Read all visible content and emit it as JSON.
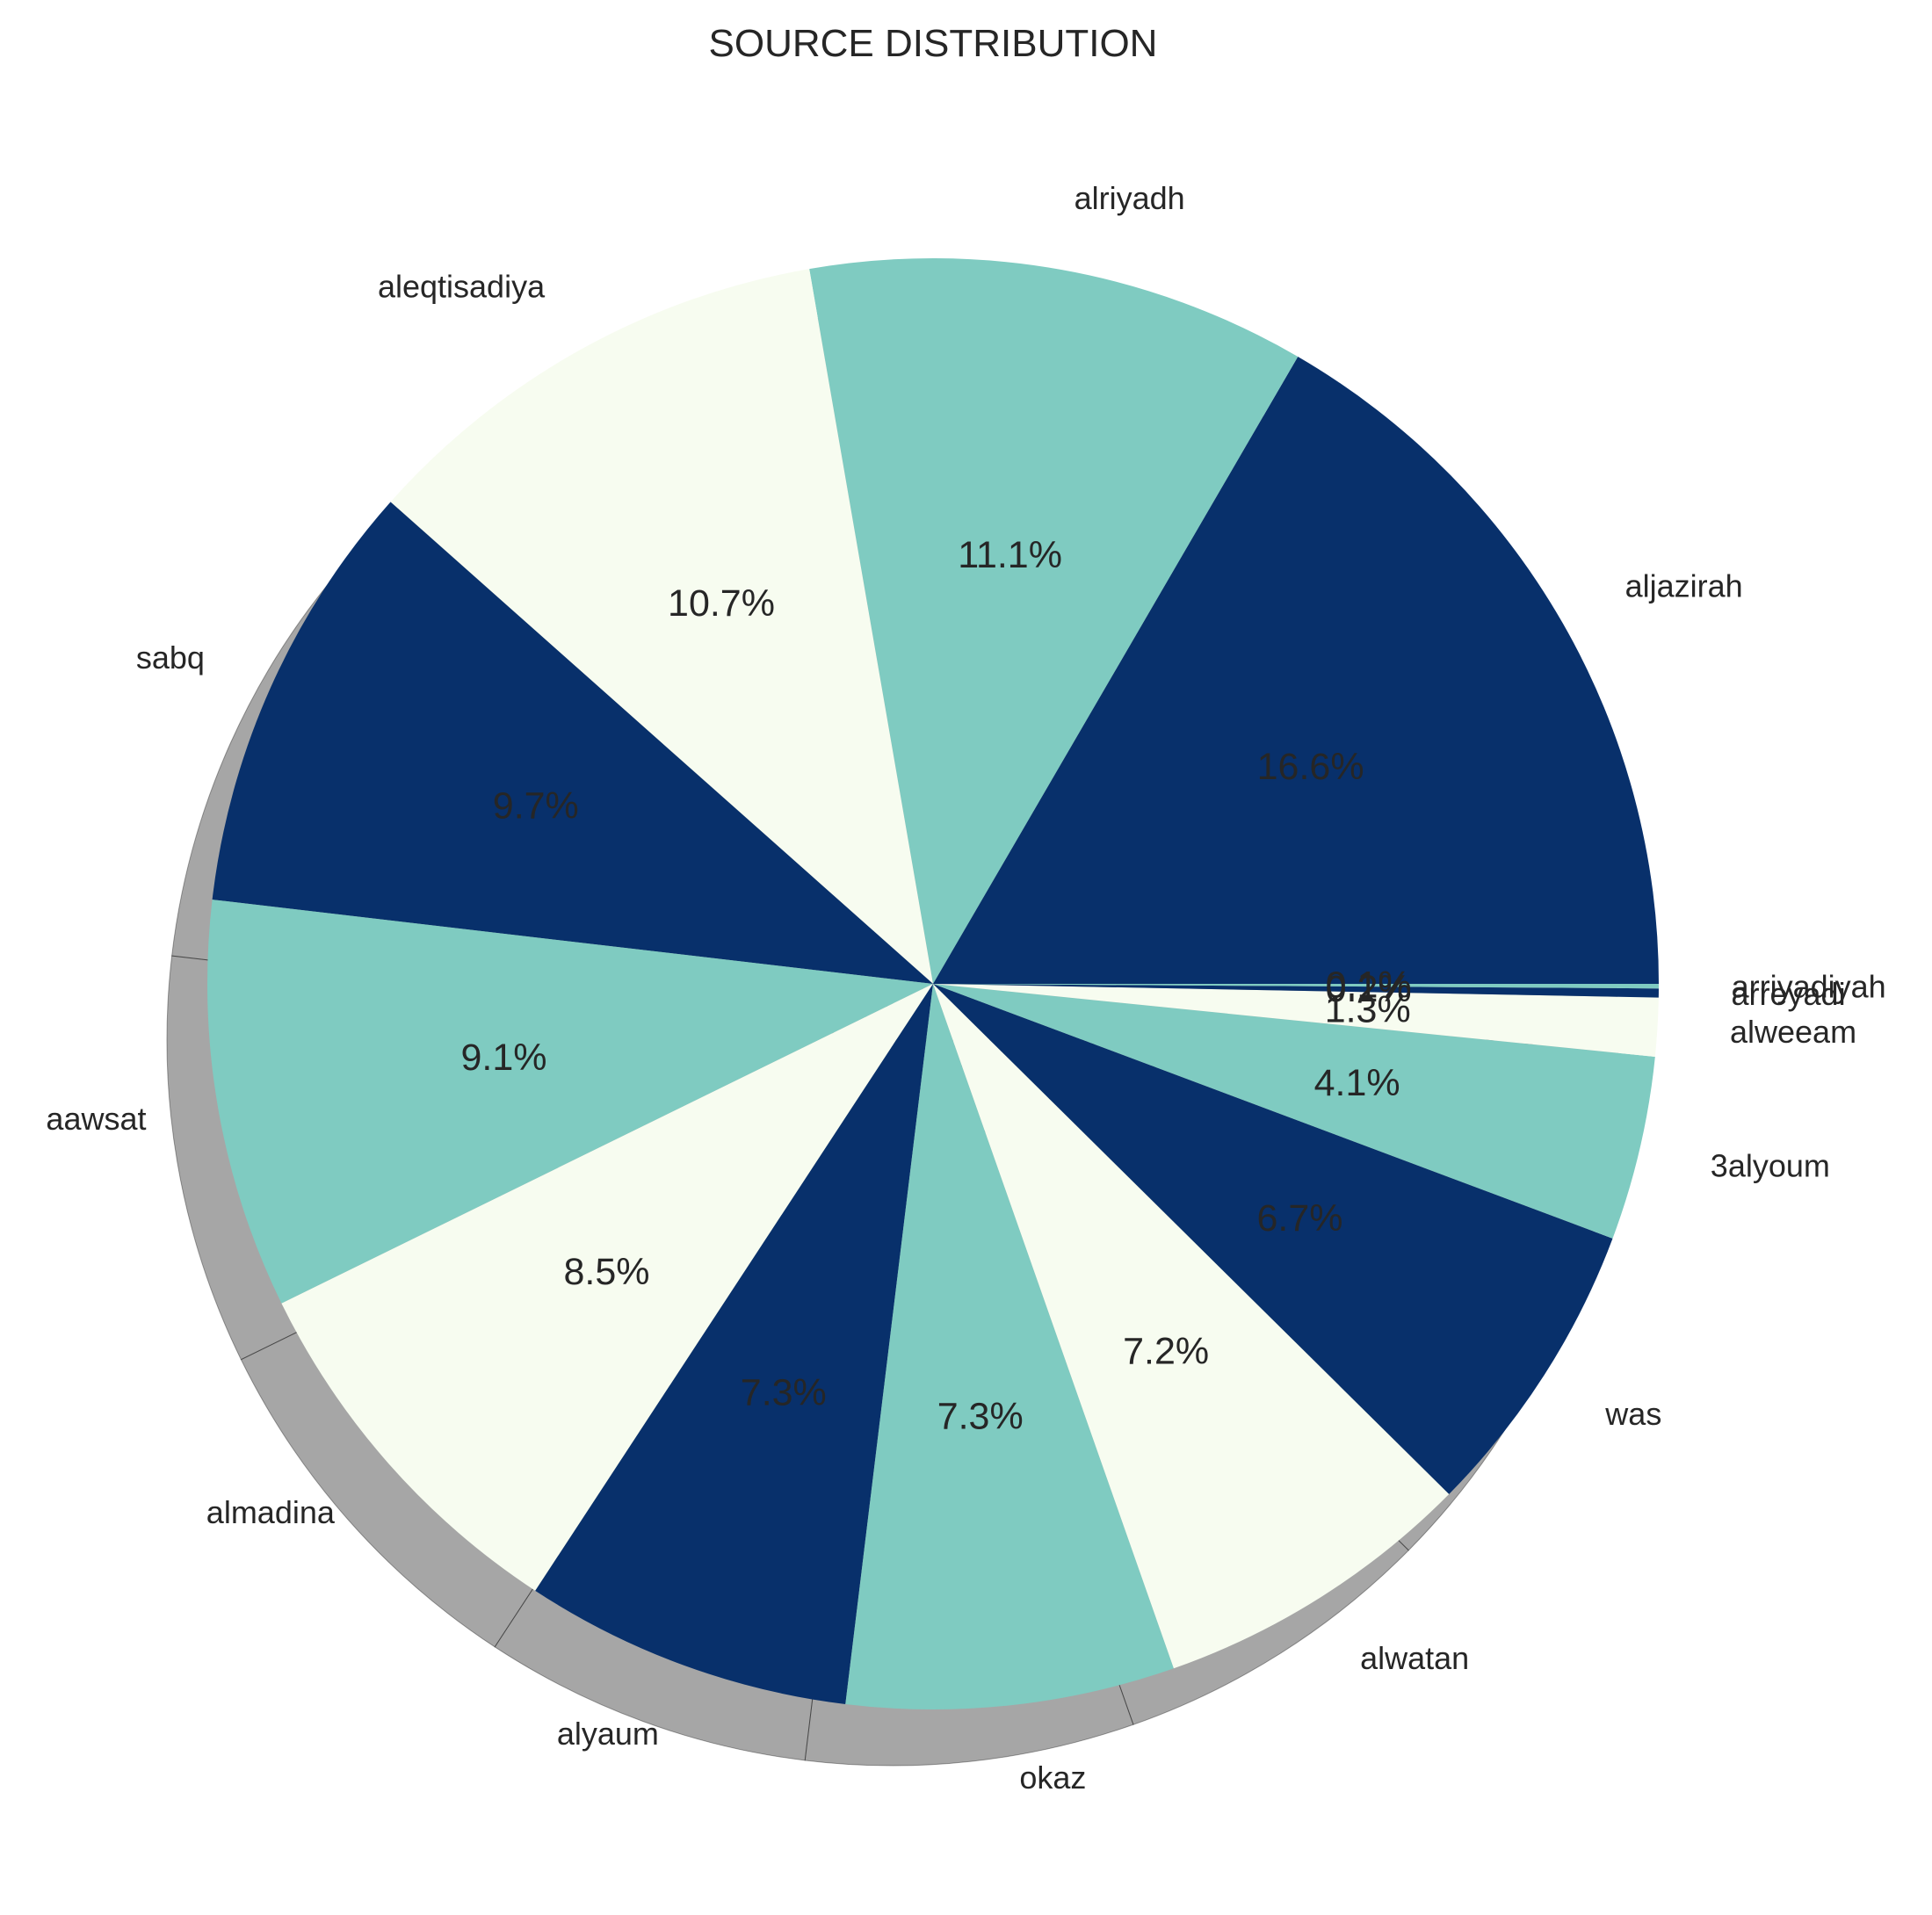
{
  "chart_data": {
    "type": "pie",
    "title": "SOURCE DISTRIBUTION",
    "start_angle_deg": 0,
    "direction": "counterclockwise",
    "shadow": true,
    "colors": [
      "#08306b",
      "#7fcbc1",
      "#f7fcf0"
    ],
    "slices": [
      {
        "label": "aljazirah",
        "value": 16.6,
        "pct_label": "16.6%"
      },
      {
        "label": "alriyadh",
        "value": 11.1,
        "pct_label": "11.1%"
      },
      {
        "label": "aleqtisadiya",
        "value": 10.7,
        "pct_label": "10.7%"
      },
      {
        "label": "sabq",
        "value": 9.7,
        "pct_label": "9.7%"
      },
      {
        "label": "aawsat",
        "value": 9.1,
        "pct_label": "9.1%"
      },
      {
        "label": "almadina",
        "value": 8.5,
        "pct_label": "8.5%"
      },
      {
        "label": "alyaum",
        "value": 7.3,
        "pct_label": "7.3%"
      },
      {
        "label": "okaz",
        "value": 7.3,
        "pct_label": "7.3%"
      },
      {
        "label": "alwatan",
        "value": 7.2,
        "pct_label": "7.2%"
      },
      {
        "label": "was",
        "value": 6.7,
        "pct_label": "6.7%"
      },
      {
        "label": "3alyoum",
        "value": 4.1,
        "pct_label": "4.1%"
      },
      {
        "label": "alweeam",
        "value": 1.3,
        "pct_label": "1.3%"
      },
      {
        "label": "arreyadi",
        "value": 0.2,
        "pct_label": "0.2%"
      },
      {
        "label": "arriyadiyah",
        "value": 0.1,
        "pct_label": "0.1%"
      }
    ]
  }
}
